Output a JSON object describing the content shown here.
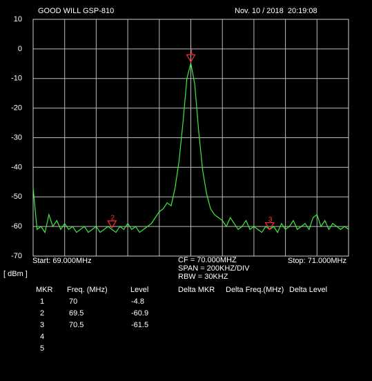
{
  "header": {
    "title": "GOOD WILL GSP-810",
    "datetime": "Nov. 10 / 2018  20:19:08"
  },
  "chart_data": {
    "type": "line",
    "ylabel": "[ dBm ]",
    "start": "Start: 69.000MHz",
    "stop": "Stop: 71.000MHz",
    "settings": [
      "CF = 70.000MHZ",
      "SPAN = 200KHZ/DIV",
      "RBW = 30KHZ"
    ],
    "xlim": [
      69,
      71
    ],
    "ylim": [
      -70,
      10
    ],
    "yticks": [
      10,
      0,
      -10,
      -20,
      -30,
      -40,
      -50,
      -60,
      -70
    ],
    "grid": true,
    "color": "#3cf03c",
    "x": [
      69,
      69.025,
      69.05,
      69.075,
      69.1,
      69.125,
      69.15,
      69.175,
      69.2,
      69.225,
      69.25,
      69.275,
      69.3,
      69.325,
      69.35,
      69.375,
      69.4,
      69.425,
      69.45,
      69.475,
      69.5,
      69.525,
      69.55,
      69.575,
      69.6,
      69.625,
      69.65,
      69.675,
      69.7,
      69.725,
      69.75,
      69.775,
      69.8,
      69.825,
      69.85,
      69.875,
      69.9,
      69.925,
      69.95,
      69.975,
      70,
      70.025,
      70.05,
      70.075,
      70.1,
      70.125,
      70.15,
      70.175,
      70.2,
      70.225,
      70.25,
      70.275,
      70.3,
      70.325,
      70.35,
      70.375,
      70.4,
      70.425,
      70.45,
      70.475,
      70.5,
      70.525,
      70.55,
      70.575,
      70.6,
      70.625,
      70.65,
      70.675,
      70.7,
      70.725,
      70.75,
      70.775,
      70.8,
      70.825,
      70.85,
      70.875,
      70.9,
      70.925,
      70.95,
      70.975,
      71
    ],
    "values": [
      -47,
      -61,
      -60,
      -62,
      -56,
      -60,
      -58,
      -61,
      -59,
      -61,
      -60,
      -62,
      -61,
      -60,
      -62,
      -61,
      -60,
      -62,
      -61,
      -60,
      -61,
      -62,
      -60,
      -61,
      -59,
      -61,
      -60,
      -62,
      -61,
      -60,
      -59,
      -57,
      -55,
      -54,
      -52,
      -53,
      -47,
      -38,
      -25,
      -10,
      -4.8,
      -12,
      -28,
      -41,
      -49,
      -54,
      -56,
      -57,
      -58,
      -60,
      -57,
      -59,
      -61,
      -60,
      -58,
      -61,
      -60,
      -61,
      -62,
      -60,
      -61,
      -60,
      -62,
      -59,
      -61,
      -60,
      -58,
      -61,
      -60,
      -59,
      -61,
      -57,
      -56,
      -60,
      -58,
      -61,
      -59,
      -60,
      -61,
      -60,
      -61
    ]
  },
  "markers": {
    "headers": [
      "MKR",
      "Freq. (MHz)",
      "Level",
      "Delta MKR",
      "Delta Freq.(MHz)",
      "Delta Level"
    ],
    "rows": [
      [
        1,
        70,
        -4.8
      ],
      [
        2,
        69.5,
        -60.9
      ],
      [
        3,
        70.5,
        -61.5
      ],
      [
        4
      ],
      [
        5
      ]
    ]
  }
}
